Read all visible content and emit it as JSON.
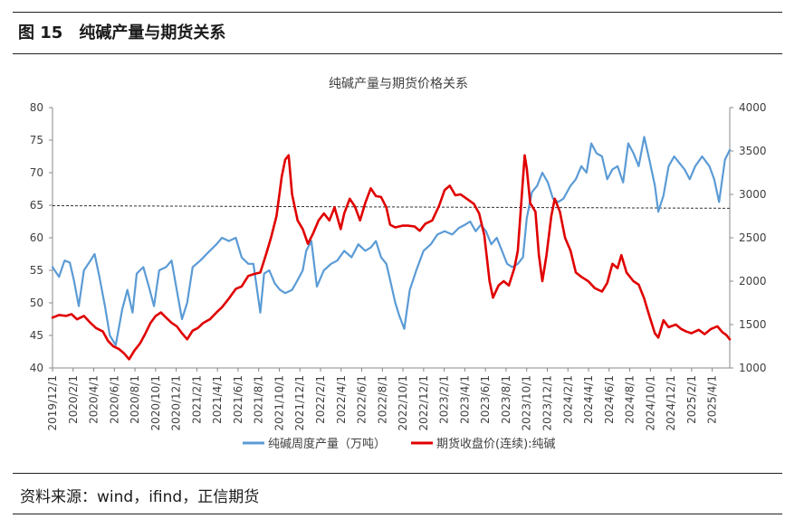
{
  "figure": {
    "label": "图 15",
    "title": "纯碱产量与期货关系",
    "source": "资料来源：wind，ifind，正信期货"
  },
  "chart_data": {
    "type": "line",
    "title": "纯碱产量与期货价格关系",
    "x_tick_labels": [
      "2019/12/1",
      "2020/2/1",
      "2020/4/1",
      "2020/6/1",
      "2020/8/1",
      "2020/10/1",
      "2020/12/1",
      "2021/2/1",
      "2021/4/1",
      "2021/6/1",
      "2021/8/1",
      "2021/10/1",
      "2021/12/1",
      "2022/2/1",
      "2022/4/1",
      "2022/6/1",
      "2022/8/1",
      "2022/10/1",
      "2022/12/1",
      "2023/2/1",
      "2023/4/1",
      "2023/6/1",
      "2023/8/1",
      "2023/10/1",
      "2023/12/1",
      "2024/2/1",
      "2024/4/1",
      "2024/6/1",
      "2024/8/1",
      "2024/10/1",
      "2024/12/1",
      "2025/2/1",
      "2025/4/1"
    ],
    "x_range": [
      "2019-12-01",
      "2025-04-15"
    ],
    "y_left": {
      "ticks": [
        40,
        45,
        50,
        55,
        60,
        65,
        70,
        75,
        80
      ],
      "lim": [
        40,
        80
      ]
    },
    "y_right": {
      "ticks": [
        1000,
        1500,
        2000,
        2500,
        3000,
        3500,
        4000
      ],
      "lim": [
        1000,
        4000
      ]
    },
    "grid": false,
    "legend_position": "bottom",
    "reference_line": {
      "axis": "right",
      "style": "dashed",
      "start": [
        "2019-12-01",
        2870
      ],
      "end": [
        "2025-04-15",
        2840
      ]
    },
    "series": [
      {
        "name": "纯碱周度产量（万吨）",
        "axis": "left",
        "color": "#5b9bd5",
        "points": [
          [
            "2019-12-01",
            55.5
          ],
          [
            "2019-12-20",
            54
          ],
          [
            "2020-01-05",
            56.5
          ],
          [
            "2020-01-20",
            56.2
          ],
          [
            "2020-02-01",
            53.5
          ],
          [
            "2020-02-15",
            49.5
          ],
          [
            "2020-03-01",
            55
          ],
          [
            "2020-03-20",
            56.5
          ],
          [
            "2020-04-01",
            57.5
          ],
          [
            "2020-04-15",
            54
          ],
          [
            "2020-05-01",
            49.5
          ],
          [
            "2020-05-15",
            45
          ],
          [
            "2020-06-01",
            43.5
          ],
          [
            "2020-06-20",
            49
          ],
          [
            "2020-07-05",
            52
          ],
          [
            "2020-07-20",
            48.5
          ],
          [
            "2020-08-01",
            54.5
          ],
          [
            "2020-08-20",
            55.5
          ],
          [
            "2020-09-05",
            52.5
          ],
          [
            "2020-09-20",
            49.5
          ],
          [
            "2020-10-05",
            55
          ],
          [
            "2020-10-25",
            55.5
          ],
          [
            "2020-11-10",
            56.5
          ],
          [
            "2020-11-25",
            52
          ],
          [
            "2020-12-10",
            47.5
          ],
          [
            "2020-12-25",
            50
          ],
          [
            "2021-01-10",
            55.5
          ],
          [
            "2021-02-01",
            56.5
          ],
          [
            "2021-03-01",
            58
          ],
          [
            "2021-03-20",
            59
          ],
          [
            "2021-04-05",
            60
          ],
          [
            "2021-04-25",
            59.5
          ],
          [
            "2021-05-15",
            60
          ],
          [
            "2021-06-01",
            57
          ],
          [
            "2021-06-20",
            56
          ],
          [
            "2021-07-05",
            56
          ],
          [
            "2021-07-25",
            48.5
          ],
          [
            "2021-08-05",
            54.5
          ],
          [
            "2021-08-20",
            55
          ],
          [
            "2021-09-05",
            53
          ],
          [
            "2021-09-20",
            52
          ],
          [
            "2021-10-05",
            51.5
          ],
          [
            "2021-10-25",
            52
          ],
          [
            "2021-11-10",
            53.5
          ],
          [
            "2021-11-25",
            55
          ],
          [
            "2021-12-05",
            58
          ],
          [
            "2021-12-20",
            59.5
          ],
          [
            "2022-01-05",
            52.5
          ],
          [
            "2022-01-25",
            55
          ],
          [
            "2022-02-15",
            56
          ],
          [
            "2022-03-05",
            56.5
          ],
          [
            "2022-03-25",
            58
          ],
          [
            "2022-04-15",
            57
          ],
          [
            "2022-05-05",
            59
          ],
          [
            "2022-05-25",
            58
          ],
          [
            "2022-06-10",
            58.5
          ],
          [
            "2022-06-25",
            59.5
          ],
          [
            "2022-07-10",
            57
          ],
          [
            "2022-07-25",
            56
          ],
          [
            "2022-08-05",
            53.5
          ],
          [
            "2022-08-20",
            50
          ],
          [
            "2022-09-01",
            48
          ],
          [
            "2022-09-15",
            46
          ],
          [
            "2022-10-01",
            52
          ],
          [
            "2022-10-20",
            55
          ],
          [
            "2022-11-10",
            58
          ],
          [
            "2022-12-01",
            59
          ],
          [
            "2022-12-20",
            60.5
          ],
          [
            "2023-01-10",
            61
          ],
          [
            "2023-02-01",
            60.5
          ],
          [
            "2023-02-20",
            61.5
          ],
          [
            "2023-03-10",
            62
          ],
          [
            "2023-03-25",
            62.5
          ],
          [
            "2023-04-10",
            61
          ],
          [
            "2023-04-25",
            62
          ],
          [
            "2023-05-10",
            61
          ],
          [
            "2023-05-25",
            59
          ],
          [
            "2023-06-10",
            60
          ],
          [
            "2023-06-25",
            58
          ],
          [
            "2023-07-10",
            56
          ],
          [
            "2023-07-25",
            55.5
          ],
          [
            "2023-08-10",
            56
          ],
          [
            "2023-08-25",
            57
          ],
          [
            "2023-09-05",
            63
          ],
          [
            "2023-09-20",
            67
          ],
          [
            "2023-10-05",
            68
          ],
          [
            "2023-10-20",
            70
          ],
          [
            "2023-11-05",
            68.5
          ],
          [
            "2023-11-20",
            66
          ],
          [
            "2023-12-05",
            65.5
          ],
          [
            "2023-12-20",
            66
          ],
          [
            "2024-01-10",
            68
          ],
          [
            "2024-01-25",
            69
          ],
          [
            "2024-02-10",
            71
          ],
          [
            "2024-02-25",
            70
          ],
          [
            "2024-03-10",
            74.5
          ],
          [
            "2024-03-25",
            73
          ],
          [
            "2024-04-10",
            72.5
          ],
          [
            "2024-04-25",
            69
          ],
          [
            "2024-05-10",
            70.5
          ],
          [
            "2024-05-25",
            71
          ],
          [
            "2024-06-10",
            68.5
          ],
          [
            "2024-06-25",
            74.5
          ],
          [
            "2024-07-10",
            73
          ],
          [
            "2024-07-25",
            71
          ],
          [
            "2024-08-10",
            75.5
          ],
          [
            "2024-08-25",
            72
          ],
          [
            "2024-09-10",
            68
          ],
          [
            "2024-09-20",
            64
          ],
          [
            "2024-10-05",
            66.5
          ],
          [
            "2024-10-20",
            71
          ],
          [
            "2024-11-05",
            72.5
          ],
          [
            "2024-11-20",
            71.5
          ],
          [
            "2024-12-05",
            70.5
          ],
          [
            "2024-12-20",
            69
          ],
          [
            "2025-01-05",
            71
          ],
          [
            "2025-01-25",
            72.5
          ],
          [
            "2025-02-15",
            71
          ],
          [
            "2025-03-01",
            69
          ],
          [
            "2025-03-15",
            65.5
          ],
          [
            "2025-04-01",
            72
          ],
          [
            "2025-04-15",
            73.5
          ]
        ]
      },
      {
        "name": "期货收盘价(连续):纯碱",
        "axis": "right",
        "color": "#e00000",
        "points": [
          [
            "2019-12-01",
            1580
          ],
          [
            "2019-12-20",
            1610
          ],
          [
            "2020-01-10",
            1600
          ],
          [
            "2020-01-25",
            1620
          ],
          [
            "2020-02-10",
            1560
          ],
          [
            "2020-03-01",
            1600
          ],
          [
            "2020-03-20",
            1520
          ],
          [
            "2020-04-05",
            1460
          ],
          [
            "2020-04-25",
            1420
          ],
          [
            "2020-05-10",
            1310
          ],
          [
            "2020-05-25",
            1250
          ],
          [
            "2020-06-10",
            1220
          ],
          [
            "2020-06-25",
            1170
          ],
          [
            "2020-07-10",
            1100
          ],
          [
            "2020-07-25",
            1200
          ],
          [
            "2020-08-10",
            1280
          ],
          [
            "2020-08-25",
            1390
          ],
          [
            "2020-09-10",
            1520
          ],
          [
            "2020-09-25",
            1600
          ],
          [
            "2020-10-10",
            1640
          ],
          [
            "2020-10-25",
            1580
          ],
          [
            "2020-11-10",
            1520
          ],
          [
            "2020-11-25",
            1480
          ],
          [
            "2020-12-10",
            1400
          ],
          [
            "2020-12-25",
            1330
          ],
          [
            "2021-01-10",
            1430
          ],
          [
            "2021-01-25",
            1460
          ],
          [
            "2021-02-10",
            1520
          ],
          [
            "2021-03-01",
            1560
          ],
          [
            "2021-03-20",
            1640
          ],
          [
            "2021-04-05",
            1700
          ],
          [
            "2021-04-25",
            1800
          ],
          [
            "2021-05-15",
            1910
          ],
          [
            "2021-06-01",
            1940
          ],
          [
            "2021-06-20",
            2060
          ],
          [
            "2021-07-05",
            2080
          ],
          [
            "2021-07-25",
            2100
          ],
          [
            "2021-08-10",
            2300
          ],
          [
            "2021-08-25",
            2500
          ],
          [
            "2021-09-10",
            2750
          ],
          [
            "2021-09-25",
            3200
          ],
          [
            "2021-10-05",
            3400
          ],
          [
            "2021-10-15",
            3450
          ],
          [
            "2021-10-25",
            3000
          ],
          [
            "2021-11-10",
            2700
          ],
          [
            "2021-11-25",
            2600
          ],
          [
            "2021-12-10",
            2430
          ],
          [
            "2021-12-25",
            2550
          ],
          [
            "2022-01-10",
            2700
          ],
          [
            "2022-01-25",
            2780
          ],
          [
            "2022-02-10",
            2700
          ],
          [
            "2022-02-25",
            2850
          ],
          [
            "2022-03-15",
            2600
          ],
          [
            "2022-03-25",
            2780
          ],
          [
            "2022-04-10",
            2950
          ],
          [
            "2022-04-25",
            2860
          ],
          [
            "2022-05-10",
            2700
          ],
          [
            "2022-05-25",
            2900
          ],
          [
            "2022-06-10",
            3070
          ],
          [
            "2022-06-25",
            2980
          ],
          [
            "2022-07-10",
            2970
          ],
          [
            "2022-07-25",
            2850
          ],
          [
            "2022-08-05",
            2650
          ],
          [
            "2022-08-20",
            2620
          ],
          [
            "2022-09-10",
            2640
          ],
          [
            "2022-09-25",
            2640
          ],
          [
            "2022-10-15",
            2630
          ],
          [
            "2022-10-30",
            2580
          ],
          [
            "2022-11-15",
            2660
          ],
          [
            "2022-12-05",
            2700
          ],
          [
            "2022-12-25",
            2870
          ],
          [
            "2023-01-10",
            3050
          ],
          [
            "2023-01-25",
            3100
          ],
          [
            "2023-02-10",
            2990
          ],
          [
            "2023-02-25",
            3000
          ],
          [
            "2023-03-15",
            2950
          ],
          [
            "2023-04-05",
            2890
          ],
          [
            "2023-04-20",
            2780
          ],
          [
            "2023-05-05",
            2530
          ],
          [
            "2023-05-20",
            2000
          ],
          [
            "2023-05-30",
            1810
          ],
          [
            "2023-06-15",
            1950
          ],
          [
            "2023-06-30",
            2000
          ],
          [
            "2023-07-15",
            1950
          ],
          [
            "2023-07-31",
            2150
          ],
          [
            "2023-08-10",
            2350
          ],
          [
            "2023-08-20",
            2900
          ],
          [
            "2023-08-30",
            3450
          ],
          [
            "2023-09-05",
            3300
          ],
          [
            "2023-09-15",
            2900
          ],
          [
            "2023-09-30",
            2800
          ],
          [
            "2023-10-10",
            2300
          ],
          [
            "2023-10-20",
            2000
          ],
          [
            "2023-11-01",
            2300
          ],
          [
            "2023-11-15",
            2750
          ],
          [
            "2023-11-25",
            2950
          ],
          [
            "2023-12-10",
            2800
          ],
          [
            "2023-12-25",
            2500
          ],
          [
            "2024-01-10",
            2350
          ],
          [
            "2024-01-25",
            2100
          ],
          [
            "2024-02-10",
            2050
          ],
          [
            "2024-03-01",
            2000
          ],
          [
            "2024-03-20",
            1920
          ],
          [
            "2024-04-10",
            1880
          ],
          [
            "2024-04-25",
            1980
          ],
          [
            "2024-05-10",
            2200
          ],
          [
            "2024-05-25",
            2150
          ],
          [
            "2024-06-05",
            2300
          ],
          [
            "2024-06-20",
            2100
          ],
          [
            "2024-07-10",
            2000
          ],
          [
            "2024-07-25",
            1960
          ],
          [
            "2024-08-10",
            1800
          ],
          [
            "2024-08-25",
            1600
          ],
          [
            "2024-09-10",
            1400
          ],
          [
            "2024-09-20",
            1350
          ],
          [
            "2024-10-05",
            1550
          ],
          [
            "2024-10-20",
            1470
          ],
          [
            "2024-11-10",
            1500
          ],
          [
            "2024-11-25",
            1450
          ],
          [
            "2024-12-10",
            1420
          ],
          [
            "2024-12-25",
            1400
          ],
          [
            "2025-01-15",
            1440
          ],
          [
            "2025-02-01",
            1390
          ],
          [
            "2025-02-20",
            1450
          ],
          [
            "2025-03-10",
            1480
          ],
          [
            "2025-03-25",
            1410
          ],
          [
            "2025-04-05",
            1380
          ],
          [
            "2025-04-15",
            1330
          ]
        ]
      }
    ]
  }
}
